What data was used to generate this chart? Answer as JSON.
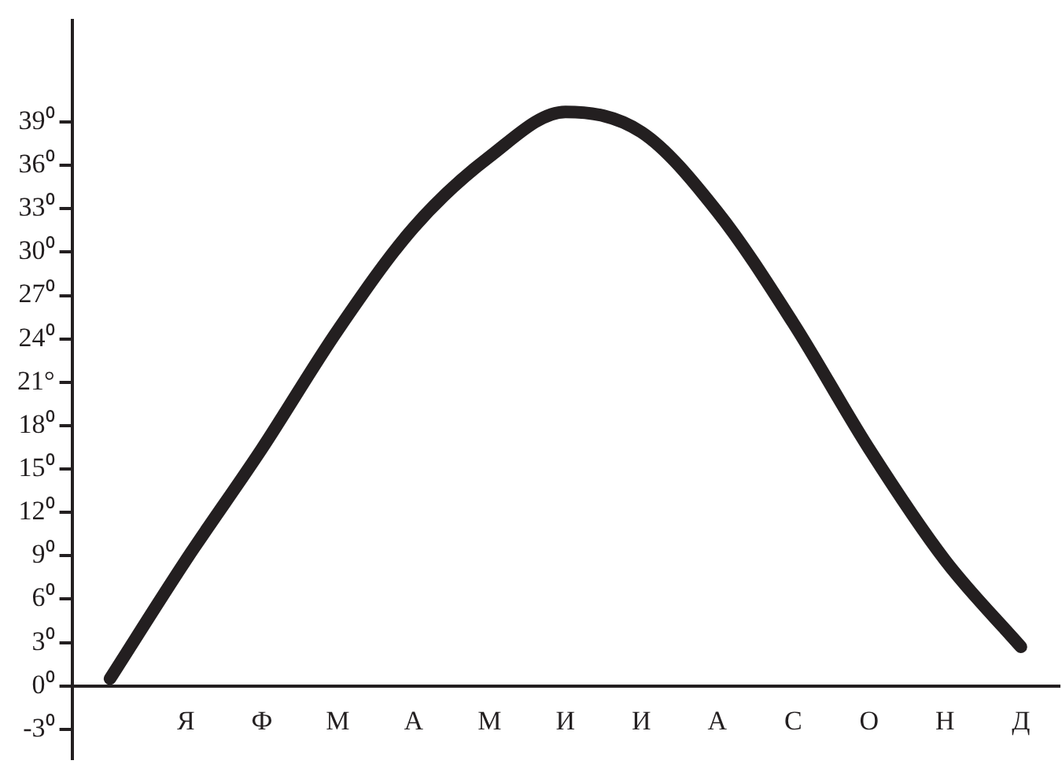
{
  "chart_data": {
    "type": "line",
    "categories": [
      null,
      "Я",
      "Ф",
      "М",
      "А",
      "М",
      "И",
      "И",
      "А",
      "С",
      "О",
      "Н",
      "Д"
    ],
    "series": [
      {
        "color": "#231f20",
        "values": [
          0.5,
          8.7,
          16.4,
          24.6,
          31.7,
          36.6,
          39.7,
          38.3,
          32.8,
          25.1,
          16.4,
          8.7,
          2.7
        ]
      }
    ],
    "ylim": [
      -5,
      46
    ],
    "yticks": [
      {
        "value": -3,
        "label": "-3⁰"
      },
      {
        "value": 0,
        "label": "0⁰"
      },
      {
        "value": 3,
        "label": "3⁰"
      },
      {
        "value": 6,
        "label": "6⁰"
      },
      {
        "value": 9,
        "label": "9⁰"
      },
      {
        "value": 12,
        "label": "12⁰"
      },
      {
        "value": 15,
        "label": "15⁰"
      },
      {
        "value": 18,
        "label": "18⁰"
      },
      {
        "value": 21,
        "label": "21°"
      },
      {
        "value": 24,
        "label": "24⁰"
      },
      {
        "value": 27,
        "label": "27⁰"
      },
      {
        "value": 30,
        "label": "30⁰"
      },
      {
        "value": 33,
        "label": "33⁰"
      },
      {
        "value": 36,
        "label": "36⁰"
      },
      {
        "value": 39,
        "label": "39⁰"
      }
    ],
    "grid": false,
    "legend": false,
    "marker": "none",
    "line_style": "solid"
  }
}
